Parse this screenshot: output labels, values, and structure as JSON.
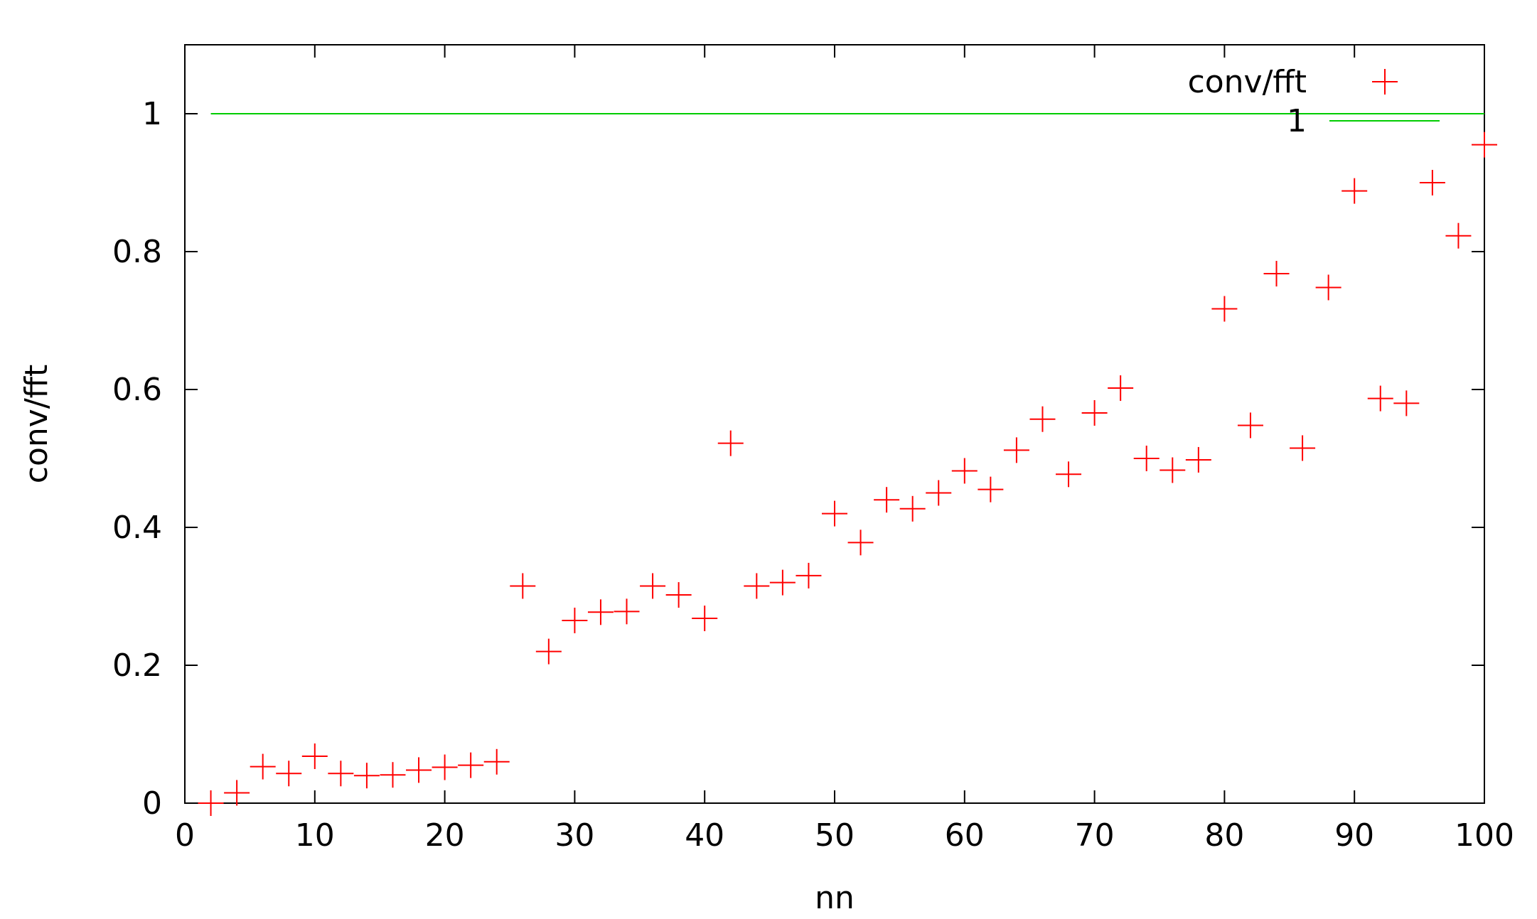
{
  "chart_data": {
    "type": "scatter",
    "title": "",
    "xlabel": "nn",
    "ylabel": "conv/fft",
    "xlim": [
      0,
      100
    ],
    "ylim": [
      0,
      1.1
    ],
    "x_ticks": [
      0,
      10,
      20,
      30,
      40,
      50,
      60,
      70,
      80,
      90,
      100
    ],
    "y_ticks": [
      0,
      0.2,
      0.4,
      0.6,
      0.8,
      1
    ],
    "x_tick_labels": [
      "0",
      "10",
      "20",
      "30",
      "40",
      "50",
      "60",
      "70",
      "80",
      "90",
      "100"
    ],
    "y_tick_labels": [
      "0",
      "0.2",
      "0.4",
      "0.6",
      "0.8",
      "1"
    ],
    "grid": false,
    "legend_position": "top-right",
    "series": [
      {
        "name": "conv/fft",
        "style": "points",
        "marker": "plus",
        "color": "#ff0000",
        "x": [
          2,
          4,
          6,
          8,
          10,
          12,
          14,
          16,
          18,
          20,
          22,
          24,
          26,
          28,
          30,
          32,
          34,
          36,
          38,
          40,
          42,
          44,
          46,
          48,
          50,
          52,
          54,
          56,
          58,
          60,
          62,
          64,
          66,
          68,
          70,
          72,
          74,
          76,
          78,
          80,
          82,
          84,
          86,
          88,
          90,
          92,
          94,
          96,
          98,
          100
        ],
        "y": [
          0.0,
          0.015,
          0.053,
          0.043,
          0.068,
          0.043,
          0.04,
          0.041,
          0.048,
          0.052,
          0.055,
          0.06,
          0.315,
          0.22,
          0.265,
          0.277,
          0.278,
          0.315,
          0.302,
          0.268,
          0.522,
          0.315,
          0.32,
          0.33,
          0.42,
          0.378,
          0.44,
          0.427,
          0.45,
          0.482,
          0.455,
          0.512,
          0.557,
          0.477,
          0.566,
          0.602,
          0.5,
          0.483,
          0.498,
          0.717,
          0.548,
          0.768,
          0.515,
          0.748,
          0.888,
          0.587,
          0.58,
          0.9,
          0.823,
          0.955
        ]
      },
      {
        "name": "1",
        "style": "line",
        "color": "#00cc00",
        "x": [
          2,
          100
        ],
        "y": [
          1,
          1
        ]
      }
    ]
  }
}
